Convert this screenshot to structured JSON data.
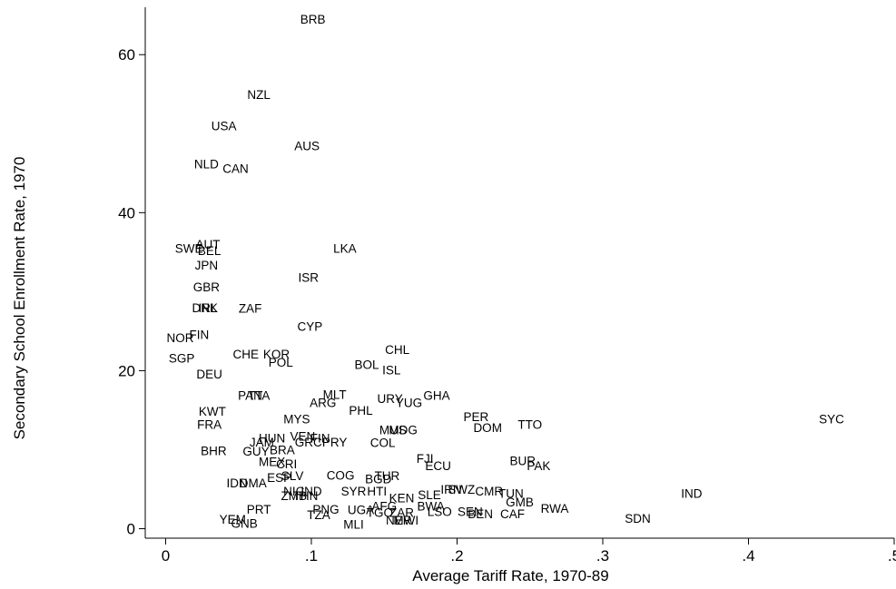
{
  "chart_data": {
    "type": "scatter",
    "xlabel": "Average Tariff Rate, 1970-89",
    "ylabel": "Secondary School Enrollment Rate, 1970",
    "xlim": [
      -0.014,
      0.5
    ],
    "ylim": [
      -1.2,
      66
    ],
    "xticks": [
      0,
      0.1,
      0.2,
      0.3,
      0.4,
      0.5
    ],
    "xtick_labels": [
      "0",
      ".1",
      ".2",
      ".3",
      ".4",
      ".5"
    ],
    "yticks": [
      0,
      20,
      40,
      60
    ],
    "ytick_labels": [
      "0",
      "20",
      "40",
      "60"
    ],
    "grid": false,
    "legend": "none",
    "marker": "country-code",
    "points": [
      {
        "label": "BRB",
        "x": 0.101,
        "y": 64.5
      },
      {
        "label": "NZL",
        "x": 0.064,
        "y": 55.0
      },
      {
        "label": "USA",
        "x": 0.04,
        "y": 51.0
      },
      {
        "label": "AUS",
        "x": 0.097,
        "y": 48.5
      },
      {
        "label": "NLD",
        "x": 0.028,
        "y": 46.2
      },
      {
        "label": "CAN",
        "x": 0.048,
        "y": 45.6
      },
      {
        "label": "AUT",
        "x": 0.029,
        "y": 36.0
      },
      {
        "label": "LKA",
        "x": 0.123,
        "y": 35.5
      },
      {
        "label": "SWE",
        "x": 0.016,
        "y": 35.5
      },
      {
        "label": "BEL",
        "x": 0.03,
        "y": 35.2
      },
      {
        "label": "JPN",
        "x": 0.028,
        "y": 33.4
      },
      {
        "label": "ISR",
        "x": 0.098,
        "y": 31.8
      },
      {
        "label": "GBR",
        "x": 0.028,
        "y": 30.6
      },
      {
        "label": "DNK",
        "x": 0.027,
        "y": 28.0
      },
      {
        "label": "IRL",
        "x": 0.029,
        "y": 28.0
      },
      {
        "label": "ZAF",
        "x": 0.058,
        "y": 27.9
      },
      {
        "label": "CYP",
        "x": 0.099,
        "y": 25.6
      },
      {
        "label": "FIN",
        "x": 0.023,
        "y": 24.6
      },
      {
        "label": "NOR",
        "x": 0.01,
        "y": 24.2
      },
      {
        "label": "CHL",
        "x": 0.159,
        "y": 22.7
      },
      {
        "label": "CHE",
        "x": 0.055,
        "y": 22.1
      },
      {
        "label": "KOR",
        "x": 0.076,
        "y": 22.1
      },
      {
        "label": "SGP",
        "x": 0.011,
        "y": 21.6
      },
      {
        "label": "POL",
        "x": 0.079,
        "y": 21.1
      },
      {
        "label": "BOL",
        "x": 0.138,
        "y": 20.8
      },
      {
        "label": "ISL",
        "x": 0.155,
        "y": 20.1
      },
      {
        "label": "DEU",
        "x": 0.03,
        "y": 19.6
      },
      {
        "label": "PAN",
        "x": 0.058,
        "y": 16.9
      },
      {
        "label": "TTA",
        "x": 0.064,
        "y": 16.9
      },
      {
        "label": "MLT",
        "x": 0.116,
        "y": 17.0
      },
      {
        "label": "GHA",
        "x": 0.186,
        "y": 16.9
      },
      {
        "label": "ARG",
        "x": 0.108,
        "y": 16.0
      },
      {
        "label": "URY",
        "x": 0.154,
        "y": 16.5
      },
      {
        "label": "YUG",
        "x": 0.167,
        "y": 16.0
      },
      {
        "label": "KWT",
        "x": 0.032,
        "y": 14.9
      },
      {
        "label": "PHL",
        "x": 0.134,
        "y": 15.0
      },
      {
        "label": "MYS",
        "x": 0.09,
        "y": 13.9
      },
      {
        "label": "PER",
        "x": 0.213,
        "y": 14.2
      },
      {
        "label": "FRA",
        "x": 0.03,
        "y": 13.2
      },
      {
        "label": "DOM",
        "x": 0.221,
        "y": 12.8
      },
      {
        "label": "TTO",
        "x": 0.25,
        "y": 13.2
      },
      {
        "label": "SYC",
        "x": 0.457,
        "y": 13.9
      },
      {
        "label": "MUS",
        "x": 0.156,
        "y": 12.5
      },
      {
        "label": "MDG",
        "x": 0.163,
        "y": 12.5
      },
      {
        "label": "HUN",
        "x": 0.073,
        "y": 11.5
      },
      {
        "label": "VEN",
        "x": 0.094,
        "y": 11.7
      },
      {
        "label": "FIN",
        "x": 0.106,
        "y": 11.5
      },
      {
        "label": "JAM",
        "x": 0.066,
        "y": 11.0
      },
      {
        "label": "GRC",
        "x": 0.098,
        "y": 11.0
      },
      {
        "label": "PRY",
        "x": 0.116,
        "y": 11.0
      },
      {
        "label": "COL",
        "x": 0.149,
        "y": 10.9
      },
      {
        "label": "GUY",
        "x": 0.062,
        "y": 9.8
      },
      {
        "label": "BRA",
        "x": 0.08,
        "y": 10.0
      },
      {
        "label": "BHR",
        "x": 0.033,
        "y": 9.9
      },
      {
        "label": "FJI",
        "x": 0.178,
        "y": 8.9
      },
      {
        "label": "BUR",
        "x": 0.245,
        "y": 8.6
      },
      {
        "label": "PAK",
        "x": 0.256,
        "y": 8.0
      },
      {
        "label": "ECU",
        "x": 0.187,
        "y": 8.0
      },
      {
        "label": "MEX",
        "x": 0.073,
        "y": 8.5
      },
      {
        "label": "CRI",
        "x": 0.083,
        "y": 8.2
      },
      {
        "label": "ESP",
        "x": 0.078,
        "y": 6.5
      },
      {
        "label": "SLV",
        "x": 0.087,
        "y": 6.7
      },
      {
        "label": "COG",
        "x": 0.12,
        "y": 6.8
      },
      {
        "label": "BGD",
        "x": 0.146,
        "y": 6.3
      },
      {
        "label": "TUR",
        "x": 0.152,
        "y": 6.7
      },
      {
        "label": "IDN",
        "x": 0.049,
        "y": 5.8
      },
      {
        "label": "DMA",
        "x": 0.06,
        "y": 5.8
      },
      {
        "label": "NIC",
        "x": 0.088,
        "y": 4.8
      },
      {
        "label": "IND",
        "x": 0.1,
        "y": 4.8
      },
      {
        "label": "SYR",
        "x": 0.129,
        "y": 4.8
      },
      {
        "label": "HTI",
        "x": 0.145,
        "y": 4.8
      },
      {
        "label": "IRN",
        "x": 0.196,
        "y": 5.0
      },
      {
        "label": "SWZ",
        "x": 0.203,
        "y": 5.0
      },
      {
        "label": "CMR",
        "x": 0.222,
        "y": 4.8
      },
      {
        "label": "TUN",
        "x": 0.237,
        "y": 4.5
      },
      {
        "label": "IND",
        "x": 0.361,
        "y": 4.5
      },
      {
        "label": "ZMB",
        "x": 0.088,
        "y": 4.2
      },
      {
        "label": "THN",
        "x": 0.096,
        "y": 4.2
      },
      {
        "label": "SLE",
        "x": 0.181,
        "y": 4.3
      },
      {
        "label": "KEN",
        "x": 0.162,
        "y": 3.9
      },
      {
        "label": "GMB",
        "x": 0.243,
        "y": 3.4
      },
      {
        "label": "AFG",
        "x": 0.15,
        "y": 2.9
      },
      {
        "label": "BWA",
        "x": 0.182,
        "y": 2.9
      },
      {
        "label": "PRT",
        "x": 0.064,
        "y": 2.5
      },
      {
        "label": "PNG",
        "x": 0.11,
        "y": 2.5
      },
      {
        "label": "UGA",
        "x": 0.134,
        "y": 2.4
      },
      {
        "label": "TGO",
        "x": 0.147,
        "y": 2.1
      },
      {
        "label": "ZAR",
        "x": 0.162,
        "y": 2.1
      },
      {
        "label": "LSO",
        "x": 0.188,
        "y": 2.2
      },
      {
        "label": "SEN",
        "x": 0.209,
        "y": 2.2
      },
      {
        "label": "RWA",
        "x": 0.267,
        "y": 2.6
      },
      {
        "label": "TZA",
        "x": 0.105,
        "y": 1.8
      },
      {
        "label": "BEN",
        "x": 0.216,
        "y": 1.9
      },
      {
        "label": "CAF",
        "x": 0.238,
        "y": 1.9
      },
      {
        "label": "SDN",
        "x": 0.324,
        "y": 1.3
      },
      {
        "label": "NER",
        "x": 0.16,
        "y": 1.1
      },
      {
        "label": "MWI",
        "x": 0.165,
        "y": 1.1
      },
      {
        "label": "YEM",
        "x": 0.046,
        "y": 1.2
      },
      {
        "label": "GNB",
        "x": 0.054,
        "y": 0.7
      },
      {
        "label": "MLI",
        "x": 0.129,
        "y": 0.6
      }
    ]
  }
}
